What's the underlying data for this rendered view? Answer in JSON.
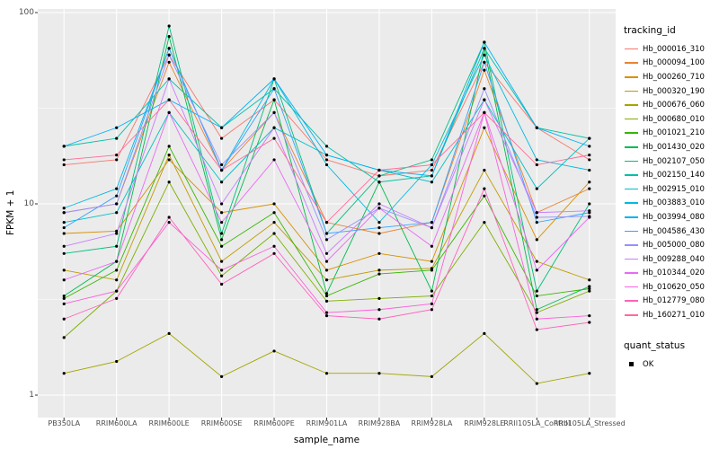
{
  "figure": {
    "panel_background": "#EBEBEB",
    "grid_color": "#FFFFFF",
    "tick_color": "#333333",
    "point_color": "#000000"
  },
  "axes": {
    "x_label": "sample_name",
    "y_label": "FPKM + 1",
    "y_ticks": [
      {
        "label": "100",
        "value": 100
      },
      {
        "label": "10",
        "value": 10
      },
      {
        "label": "1",
        "value": 1
      }
    ]
  },
  "legend": {
    "tracking_title": "tracking_id",
    "quant_title": "quant_status",
    "quant_items": [
      {
        "label": "OK"
      }
    ]
  },
  "chart_data": {
    "type": "line",
    "x_type": "categorical",
    "y_scale": "log10",
    "ylim": [
      0.76,
      104
    ],
    "grid": true,
    "legend_position": "right",
    "marker": "point",
    "title": "",
    "xlabel": "sample_name",
    "ylabel": "FPKM + 1",
    "categories": [
      "PB350LA",
      "RRIM600LA",
      "RRIM600LE",
      "RRIM600SE",
      "RRIM600PE",
      "RRIM901LA",
      "RRIM928BA",
      "RRIM928LA",
      "RRIM928LE",
      "RRII105LA_Control",
      "RRII105LA_Stressed"
    ],
    "minor_breaks": [
      3.1623,
      31.623
    ],
    "series": [
      {
        "name": "Hb_000016_310",
        "color": "#F8766D",
        "values": [
          16,
          17,
          60,
          22,
          35,
          17,
          14,
          15,
          55,
          25,
          17
        ]
      },
      {
        "name": "Hb_000094_100",
        "color": "#EA8331",
        "values": [
          9,
          10,
          55,
          15,
          30,
          8,
          7,
          8,
          50,
          9,
          12
        ]
      },
      {
        "name": "Hb_000260_710",
        "color": "#D89000",
        "values": [
          7,
          7.2,
          17,
          9,
          10,
          4.5,
          5.5,
          5,
          25,
          6.5,
          13
        ]
      },
      {
        "name": "Hb_000320_190",
        "color": "#C09B00",
        "values": [
          4.5,
          4,
          18,
          5,
          8,
          4,
          4.5,
          4.6,
          15,
          5,
          4
        ]
      },
      {
        "name": "Hb_000676_060",
        "color": "#A3A500",
        "values": [
          1.3,
          1.5,
          2.1,
          1.25,
          1.7,
          1.3,
          1.3,
          1.25,
          2.1,
          1.15,
          1.3
        ]
      },
      {
        "name": "Hb_000680_010",
        "color": "#7CAE00",
        "values": [
          2,
          3.5,
          13,
          4.2,
          7,
          3.1,
          3.2,
          3.3,
          8,
          2.7,
          3.5
        ]
      },
      {
        "name": "Hb_001021_210",
        "color": "#39B600",
        "values": [
          3.2,
          4.5,
          20,
          6,
          9,
          3.3,
          4.3,
          4.5,
          11,
          3.3,
          3.6
        ]
      },
      {
        "name": "Hb_001430_020",
        "color": "#00BB4E",
        "values": [
          3.3,
          5,
          75,
          6.5,
          35,
          3.4,
          13,
          3.5,
          65,
          2.8,
          3.7
        ]
      },
      {
        "name": "Hb_002107_050",
        "color": "#00BF7D",
        "values": [
          5.5,
          6,
          85,
          7,
          45,
          7,
          14,
          17,
          70,
          3.5,
          10
        ]
      },
      {
        "name": "Hb_002150_140",
        "color": "#00C1A3",
        "values": [
          20,
          22,
          45,
          25,
          40,
          20,
          13,
          14,
          65,
          25,
          22
        ]
      },
      {
        "name": "Hb_002915_010",
        "color": "#00BFC4",
        "values": [
          8,
          9,
          30,
          13,
          25,
          18,
          15,
          13,
          35,
          12,
          22
        ]
      },
      {
        "name": "Hb_003883_010",
        "color": "#00BAE0",
        "values": [
          9.5,
          12,
          65,
          15,
          45,
          16,
          8,
          16,
          60,
          17,
          15
        ]
      },
      {
        "name": "Hb_003994_080",
        "color": "#00B0F6",
        "values": [
          20,
          25,
          35,
          25,
          45,
          18,
          15,
          14,
          70,
          25,
          20
        ]
      },
      {
        "name": "Hb_004586_430",
        "color": "#35A2FF",
        "values": [
          7.5,
          11,
          65,
          15,
          40,
          7,
          7.5,
          8,
          55,
          8,
          9
        ]
      },
      {
        "name": "Hb_005000_080",
        "color": "#9590FF",
        "values": [
          9,
          10,
          60,
          16,
          30,
          6.5,
          9.5,
          7.5,
          40,
          8.5,
          8.6
        ]
      },
      {
        "name": "Hb_009288_040",
        "color": "#C77CFF",
        "values": [
          6,
          7,
          45,
          10,
          25,
          5.5,
          10,
          7.5,
          35,
          9,
          9.2
        ]
      },
      {
        "name": "Hb_010344_020",
        "color": "#E76BF3",
        "values": [
          4,
          5,
          30,
          8,
          17,
          5,
          9.5,
          6,
          30,
          4.5,
          8.5
        ]
      },
      {
        "name": "Hb_010620_050",
        "color": "#FA62DB",
        "values": [
          3,
          3.5,
          8,
          4.5,
          6,
          2.7,
          2.8,
          3,
          30,
          2.5,
          2.6
        ]
      },
      {
        "name": "Hb_012779_080",
        "color": "#FF62BC",
        "values": [
          2.5,
          3.2,
          8.5,
          3.8,
          5.5,
          2.6,
          2.5,
          2.8,
          12,
          2.2,
          2.4
        ]
      },
      {
        "name": "Hb_160271_010",
        "color": "#FF6A98",
        "values": [
          17,
          18,
          35,
          15,
          22,
          8,
          15,
          16,
          30,
          16,
          18
        ]
      }
    ],
    "quant_status": "OK"
  }
}
